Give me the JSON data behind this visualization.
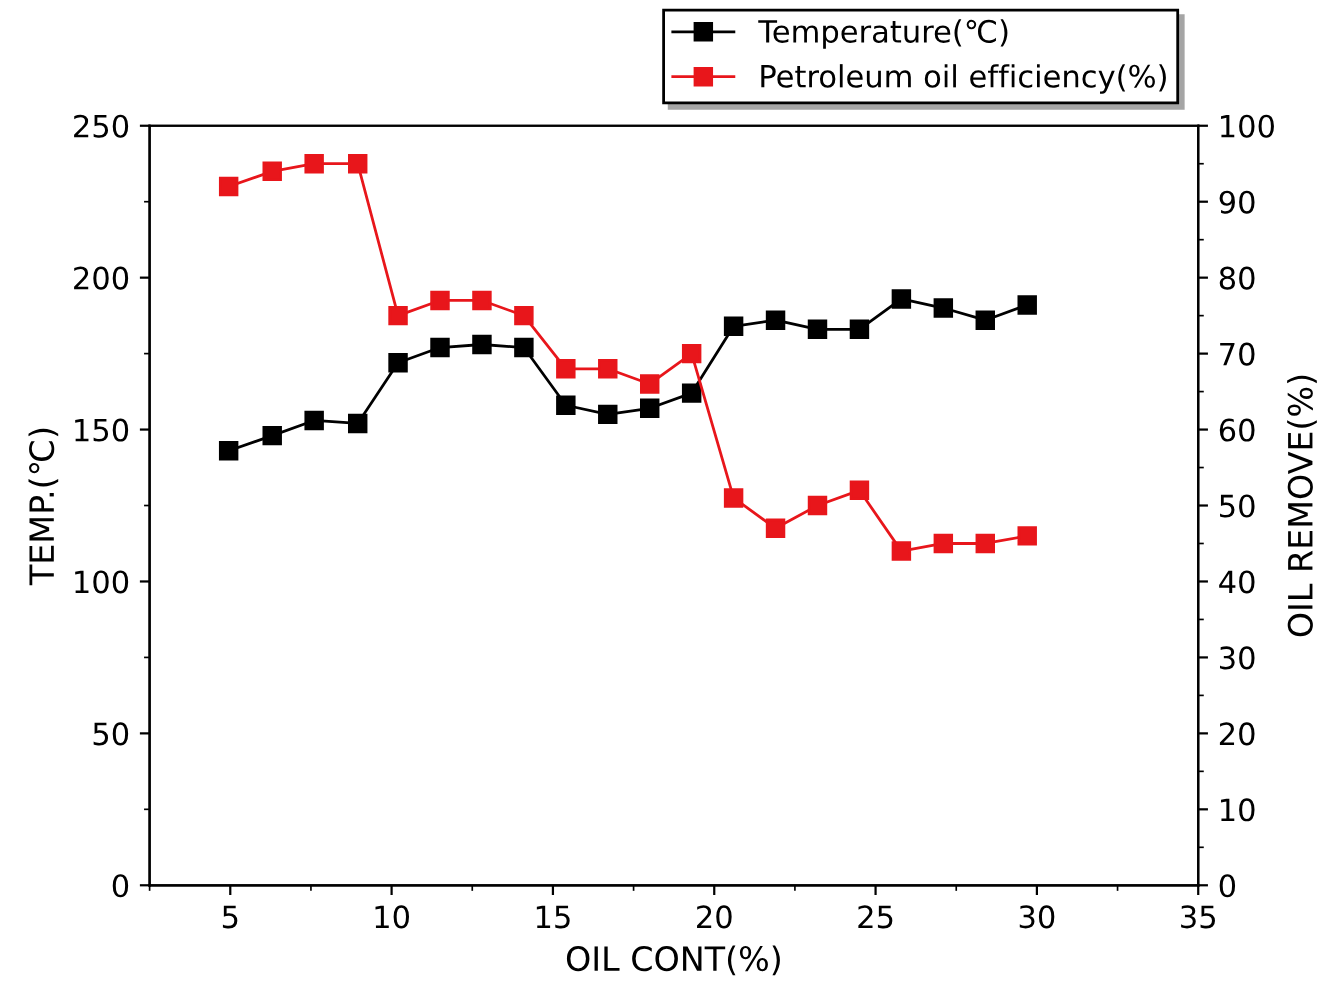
{
  "chart_data": {
    "type": "line",
    "xlabel": "OIL CONT(%)",
    "ylabel": "TEMP.(℃)",
    "y2label": "OIL REMOVE(%)",
    "series": [
      {
        "name": "Temperature(℃)",
        "color": "#000000",
        "x": [
          4.95,
          6.3,
          7.6,
          8.95,
          10.2,
          11.5,
          12.8,
          14.1,
          15.4,
          16.7,
          18.0,
          19.3,
          20.6,
          21.9,
          23.2,
          24.5,
          25.8,
          27.1,
          28.4,
          29.7
        ],
        "values": [
          143,
          148,
          153,
          152,
          172,
          177,
          178,
          177,
          158,
          155,
          157,
          162,
          184,
          186,
          183,
          183,
          193,
          190,
          186,
          191
        ]
      },
      {
        "name": "Petroleum oil efficiency(%)",
        "color": "#e8161b",
        "axis": "y2",
        "x": [
          4.95,
          6.3,
          7.6,
          8.95,
          10.2,
          11.5,
          12.8,
          14.1,
          15.4,
          16.7,
          18.0,
          19.3,
          20.6,
          21.9,
          23.2,
          24.5,
          25.8,
          27.1,
          28.4,
          29.7
        ],
        "values": [
          92,
          94,
          95,
          95,
          75,
          77,
          77,
          75,
          68,
          68,
          66,
          70,
          51,
          47,
          50,
          52,
          44,
          45,
          45,
          46
        ]
      }
    ],
    "xlim": [
      2.5,
      35
    ],
    "xticks": [
      5,
      10,
      15,
      20,
      25,
      30,
      35
    ],
    "ylim": [
      0,
      250
    ],
    "yticks": [
      0,
      50,
      100,
      150,
      200,
      250
    ],
    "y2lim": [
      0,
      100
    ],
    "y2ticks": [
      0,
      10,
      20,
      30,
      40,
      50,
      60,
      70,
      80,
      90,
      100
    ],
    "marker": "square",
    "line_style": "solid",
    "legend": "top right",
    "grid": false
  }
}
